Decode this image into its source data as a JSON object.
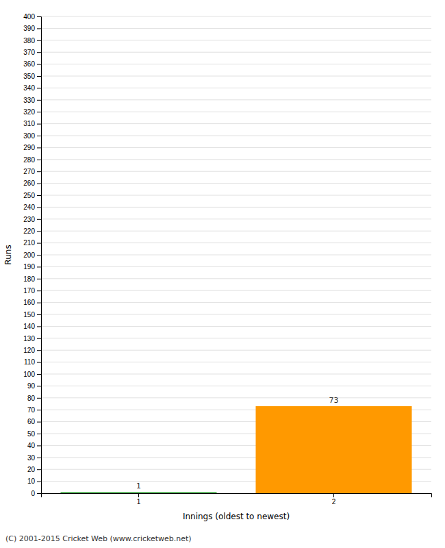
{
  "chart_data": {
    "type": "bar",
    "xlabel": "Innings (oldest to newest)",
    "ylabel": "Runs",
    "categories": [
      "1",
      "2"
    ],
    "values": [
      1,
      73
    ],
    "colors": [
      "#4caf50",
      "#ff9900"
    ],
    "ylim": [
      0,
      400
    ],
    "yticks": [
      0,
      10,
      20,
      30,
      40,
      50,
      60,
      70,
      80,
      90,
      100,
      110,
      120,
      130,
      140,
      150,
      160,
      170,
      180,
      190,
      200,
      210,
      220,
      230,
      240,
      250,
      260,
      270,
      280,
      290,
      300,
      310,
      320,
      330,
      340,
      350,
      360,
      370,
      380,
      390,
      400
    ],
    "grid": true,
    "data_labels": true,
    "annotations": [
      "(C) 2001-2015 Cricket Web (www.cricketweb.net)"
    ]
  }
}
